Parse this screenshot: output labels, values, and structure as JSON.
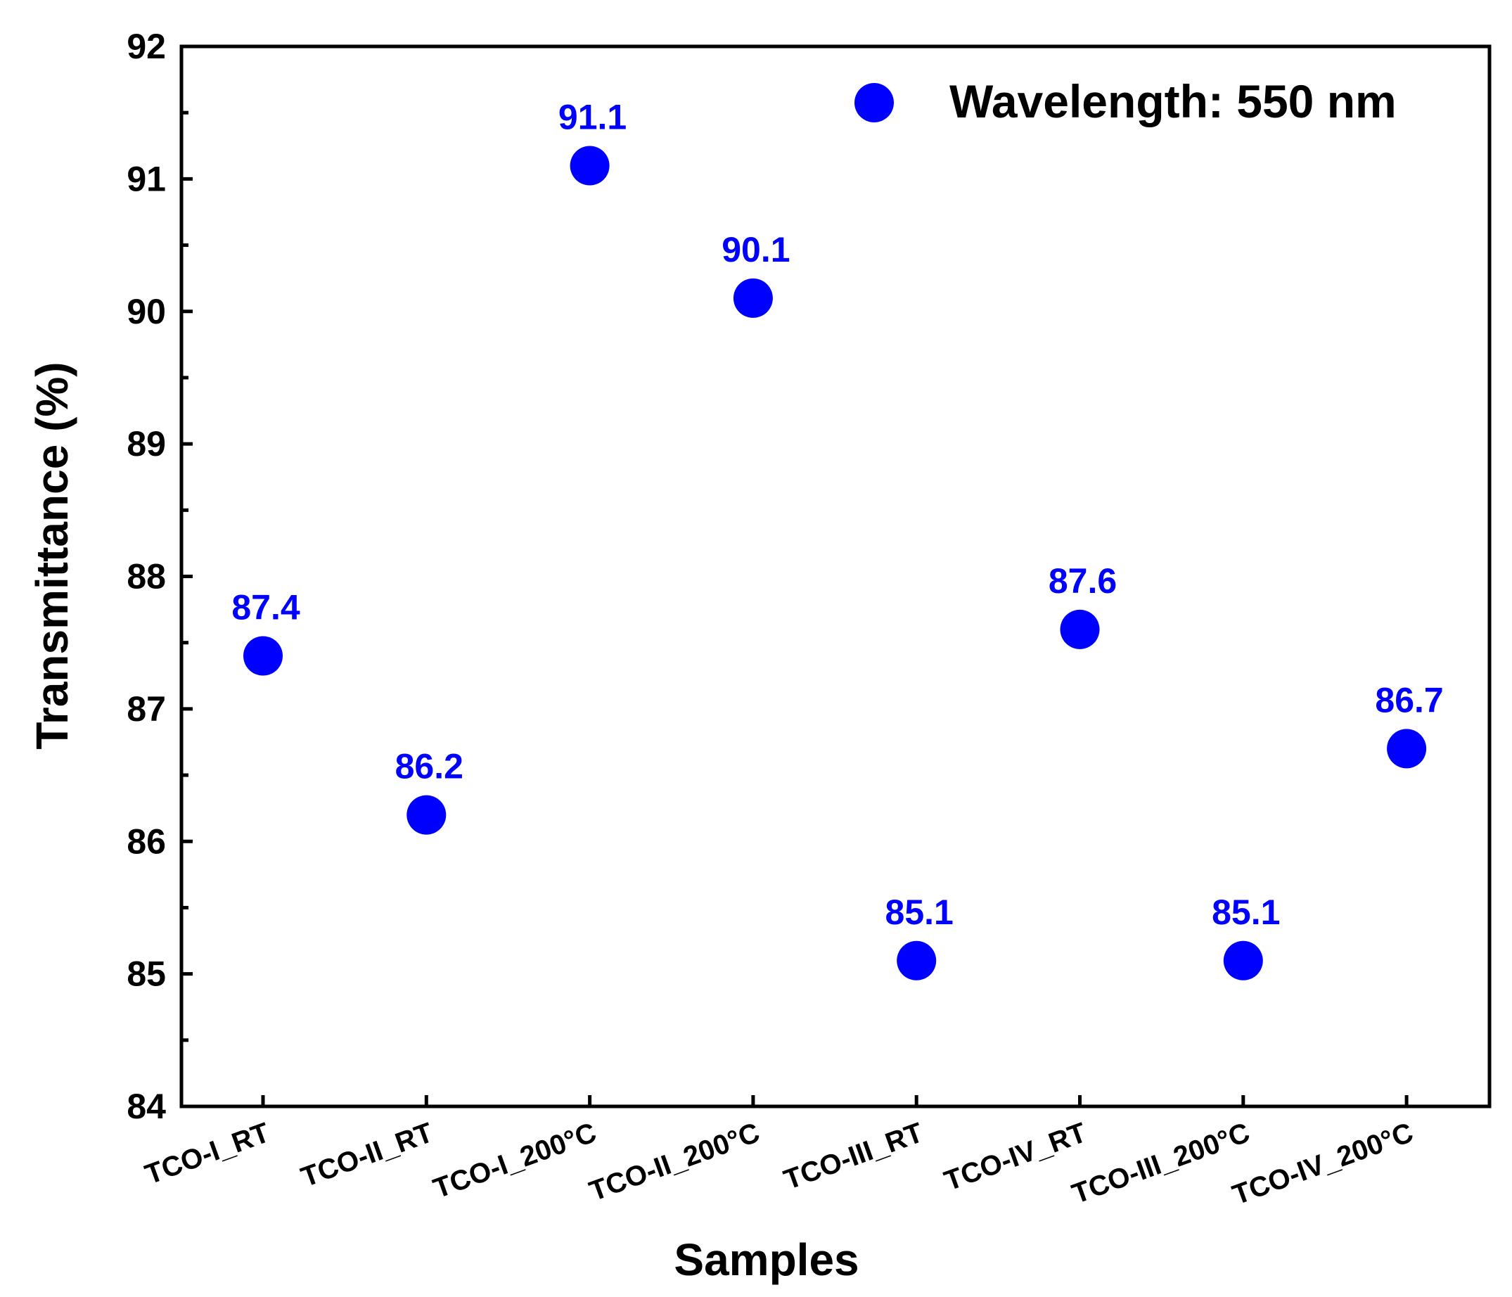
{
  "chart_data": {
    "type": "scatter",
    "title": "",
    "xlabel": "Samples",
    "ylabel": "Transmittance (%)",
    "ylim": [
      84,
      92
    ],
    "y_major_ticks": [
      84,
      85,
      86,
      87,
      88,
      89,
      90,
      91,
      92
    ],
    "y_minor_step": 0.5,
    "categories": [
      "TCO-I_RT",
      "TCO-II_RT",
      "TCO-I_200°C",
      "TCO-II_200°C",
      "TCO-III_RT",
      "TCO-IV_RT",
      "TCO-III_200°C",
      "TCO-IV_200°C"
    ],
    "series": [
      {
        "name": "Wavelength: 550 nm",
        "values": [
          87.4,
          86.2,
          91.1,
          90.1,
          85.1,
          87.6,
          85.1,
          86.7
        ],
        "labels": [
          "87.4",
          "86.2",
          "91.1",
          "90.1",
          "85.1",
          "87.6",
          "85.1",
          "86.7"
        ],
        "color": "#0000ff"
      }
    ],
    "grid": false,
    "legend": "top-right",
    "axis_color": "#000000"
  }
}
